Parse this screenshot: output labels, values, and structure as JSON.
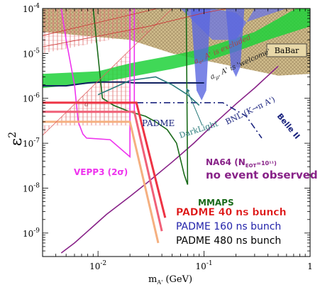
{
  "chart_data": {
    "type": "line",
    "xlabel": "m",
    "xlabel_sub": "A'",
    "xlabel_unit": " (GeV)",
    "ylabel": "ε",
    "ylabel_sup": "2",
    "xscale": "log",
    "yscale": "log",
    "xlim": [
      0.003,
      1
    ],
    "ylim": [
      3e-10,
      0.0001
    ],
    "x_ticks": [
      {
        "value": 0.01,
        "label": "10",
        "exp": "-2"
      },
      {
        "value": 0.1,
        "label": "10",
        "exp": "-1"
      },
      {
        "value": 1,
        "label": "1",
        "exp": ""
      }
    ],
    "y_ticks": [
      {
        "value": 0.0001,
        "label": "10",
        "exp": "-4"
      },
      {
        "value": 1e-05,
        "label": "10",
        "exp": "-5"
      },
      {
        "value": 1e-06,
        "label": "10",
        "exp": "-6"
      },
      {
        "value": 1e-07,
        "label": "10",
        "exp": "-7"
      },
      {
        "value": 1e-08,
        "label": "10",
        "exp": "-8"
      },
      {
        "value": 1e-09,
        "label": "10",
        "exp": "-9"
      }
    ],
    "regions": [
      {
        "name": "BaBar",
        "color": "#c8b078"
      },
      {
        "name": "a_e, A' is excluded",
        "color": "#e89090"
      },
      {
        "name": "a_μ, A' is 'welcome'",
        "color": "#22bb33"
      },
      {
        "name": "BNL (K→π A')",
        "color": "#6a78e8"
      }
    ],
    "annotations": {
      "babar": "BaBar",
      "ae_excluded": "a",
      "ae_sub": "e",
      "ae_rest": ", A' is excluded",
      "amu_welcome": "a",
      "amu_sub": "μ",
      "amu_rest": ", A' is 'welcome'",
      "bnl": "BNL (K→π A')",
      "padme": "PADME",
      "darklight": "DarkLight",
      "belle": "Belle II",
      "vepp3": "VEPP3 (2σ)",
      "mmaps": "MMAPS",
      "na64": "NA64 (N",
      "na64_sub": "EOT",
      "na64_rest": "=10¹¹)",
      "no_event": "no event observed",
      "ae_short": "a"
    },
    "legend": [
      {
        "label": "PADME 40 ns bunch",
        "color": "#dd1111"
      },
      {
        "label": "PADME 160 ns bunch",
        "color": "#2222aa"
      },
      {
        "label": "PADME 480 ns bunch",
        "color": "#000000"
      }
    ],
    "series": [
      {
        "name": "NA64",
        "color": "#882288",
        "x": [
          0.0045,
          0.006,
          0.008,
          0.012,
          0.02,
          0.03,
          0.05,
          0.08,
          0.12,
          0.2,
          0.3,
          0.5
        ],
        "y": [
          3.6e-10,
          6e-10,
          1.1e-09,
          2.6e-09,
          6.5e-09,
          1.4e-08,
          3.8e-08,
          1e-07,
          2.5e-07,
          7.5e-07,
          1.7e-06,
          5.2e-06
        ]
      },
      {
        "name": "Belle II",
        "color": "#1a237e",
        "x": [
          0.003,
          0.15,
          0.25,
          0.35
        ],
        "y": [
          8e-07,
          8e-07,
          4e-07,
          1.3e-07
        ]
      },
      {
        "name": "PADME",
        "color": "#102060",
        "x": [
          0.003,
          0.005,
          0.008,
          0.011,
          0.018,
          0.022,
          0.03,
          0.05,
          0.1
        ],
        "y": [
          1.9e-06,
          1.9e-06,
          2.2e-06,
          2.3e-06,
          2.3e-06,
          2.2e-06,
          2.2e-06,
          2.2e-06,
          2.2e-06
        ]
      },
      {
        "name": "MMAPS",
        "color": "#1a6b1a",
        "x": [
          0.009,
          0.011,
          0.014,
          0.02,
          0.028,
          0.035,
          0.045,
          0.055,
          0.065,
          0.07,
          0.068
        ],
        "y": [
          0.0001,
          1e-06,
          7e-07,
          5e-07,
          4e-07,
          3e-07,
          2e-07,
          1e-07,
          2e-08,
          1.2e-08,
          0.0001
        ]
      },
      {
        "name": "DarkLight",
        "color": "#2a7b7b",
        "x": [
          0.01,
          0.02,
          0.035,
          0.05,
          0.07,
          0.09
        ],
        "y": [
          1.2e-06,
          2.5e-06,
          3e-06,
          2e-06,
          1.2e-06,
          7e-07
        ]
      },
      {
        "name": "VEPP3 (2σ)",
        "color": "#ee33ee",
        "x": [
          0.0045,
          0.005,
          0.006,
          0.0065,
          0.0072,
          0.0078,
          0.013,
          0.02,
          0.02,
          0.022,
          0.022
        ],
        "y": [
          0.0001,
          2e-05,
          2e-06,
          3e-07,
          1.6e-07,
          1.3e-07,
          1.2e-07,
          5e-08,
          0.0001,
          0.0001,
          5e-07
        ]
      },
      {
        "name": "PADME 40 ns bunch",
        "color": "#ee3344",
        "x": [
          0.003,
          0.023,
          0.043
        ],
        "y": [
          8e-07,
          8e-07,
          2.2e-09
        ]
      },
      {
        "name": "PADME 160 ns bunch",
        "color": "#f06078",
        "x": [
          0.003,
          0.022,
          0.04
        ],
        "y": [
          5e-07,
          5e-07,
          1.1e-09
        ]
      },
      {
        "name": "PADME 480 ns bunch",
        "color": "#f5b080",
        "x": [
          0.003,
          0.02,
          0.037
        ],
        "y": [
          3e-07,
          3e-07,
          6e-10
        ]
      }
    ]
  }
}
